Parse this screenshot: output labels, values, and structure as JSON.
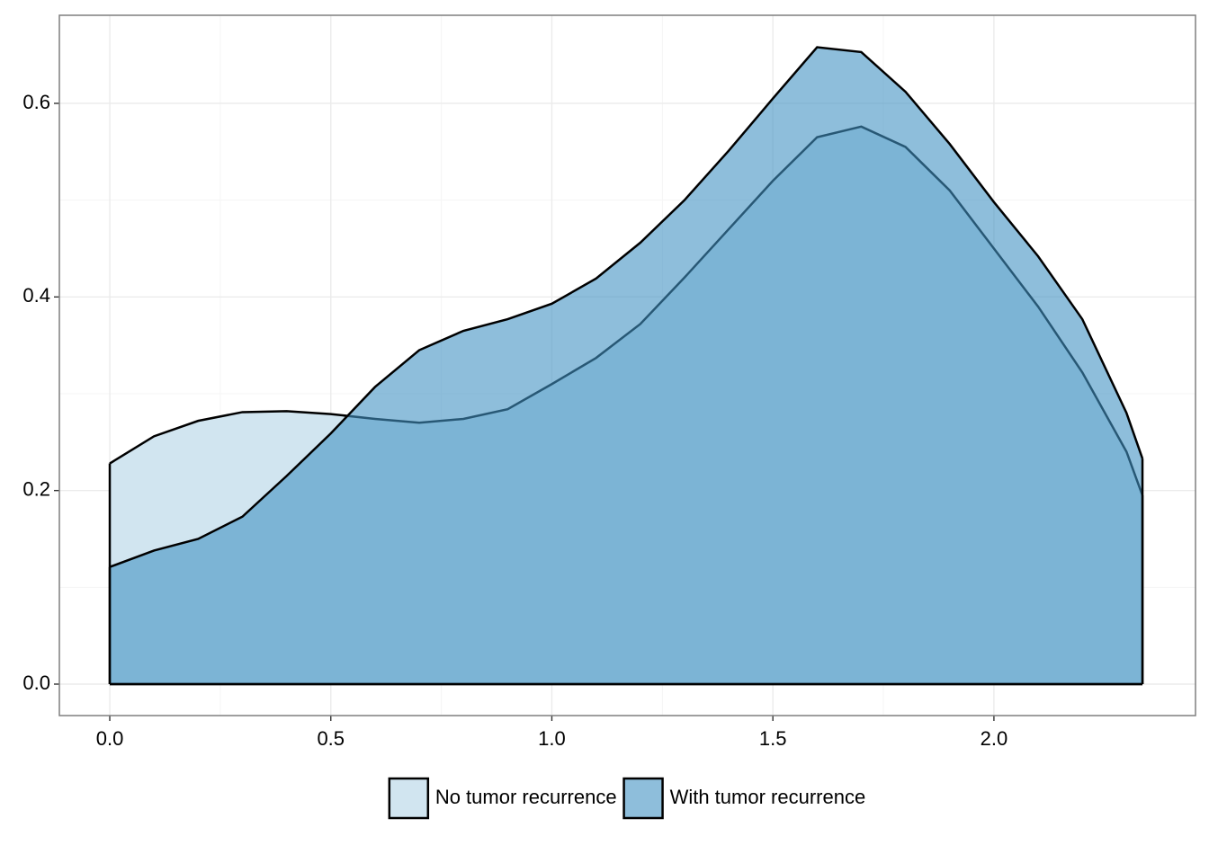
{
  "chart_data": {
    "type": "area",
    "x": [
      0,
      0.1,
      0.2,
      0.3,
      0.4,
      0.5,
      0.6,
      0.7,
      0.8,
      0.9,
      1.0,
      1.1,
      1.2,
      1.3,
      1.4,
      1.5,
      1.6,
      1.7,
      1.8,
      1.9,
      2.0,
      2.1,
      2.2,
      2.3,
      2.336
    ],
    "series": [
      {
        "name": "No tumor recurrence",
        "color": "#d1e5f0",
        "values": [
          0.228,
          0.256,
          0.272,
          0.281,
          0.282,
          0.279,
          0.274,
          0.27,
          0.274,
          0.284,
          0.31,
          0.337,
          0.372,
          0.42,
          0.47,
          0.52,
          0.565,
          0.576,
          0.555,
          0.51,
          0.45,
          0.39,
          0.322,
          0.24,
          0.195
        ]
      },
      {
        "name": "With tumor recurrence",
        "color": "#4393c3",
        "values": [
          0.121,
          0.138,
          0.15,
          0.173,
          0.215,
          0.259,
          0.307,
          0.345,
          0.365,
          0.377,
          0.393,
          0.419,
          0.456,
          0.5,
          0.551,
          0.605,
          0.658,
          0.653,
          0.612,
          0.558,
          0.498,
          0.442,
          0.377,
          0.28,
          0.233
        ]
      }
    ],
    "xlim": [
      -0.114,
      2.456
    ],
    "ylim": [
      -0.0325,
      0.691
    ],
    "xticks": [
      {
        "value": 0,
        "label": "0.0"
      },
      0.5,
      {
        "value": 1,
        "label": "1.0"
      },
      1.5,
      {
        "value": 2,
        "label": "2.0"
      }
    ],
    "yticks": [
      {
        "value": 0,
        "label": "0.0"
      },
      0.2,
      0.4,
      0.6
    ],
    "grid": true,
    "minor_grid": true,
    "legend": "bottom"
  }
}
